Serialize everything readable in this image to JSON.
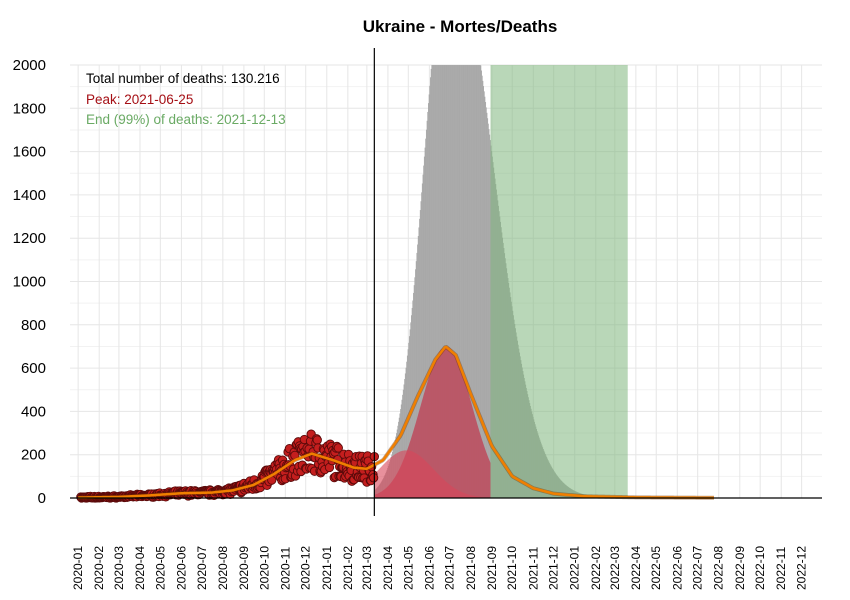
{
  "chart_data": {
    "type": "area",
    "title": "Ukraine - Mortes/Deaths",
    "xlabel": "",
    "ylabel": "",
    "ylim": [
      0,
      2000
    ],
    "xlim": [
      "2019-12-20",
      "2022-12-31"
    ],
    "y_ticks": [
      0,
      200,
      400,
      600,
      800,
      1000,
      1200,
      1400,
      1600,
      1800,
      2000
    ],
    "x_ticks": [
      "2020-01",
      "2020-02",
      "2020-03",
      "2020-04",
      "2020-05",
      "2020-06",
      "2020-07",
      "2020-08",
      "2020-09",
      "2020-10",
      "2020-11",
      "2020-12",
      "2021-01",
      "2021-02",
      "2021-03",
      "2021-04",
      "2021-05",
      "2021-06",
      "2021-07",
      "2021-08",
      "2021-09",
      "2021-10",
      "2021-11",
      "2021-12",
      "2022-01",
      "2022-02",
      "2022-03",
      "2022-04",
      "2022-05",
      "2022-06",
      "2022-07",
      "2022-08",
      "2022-09",
      "2022-10",
      "2022-11",
      "2022-12"
    ],
    "grid": true,
    "annotations": [
      {
        "text": "Total number of deaths: 130.216",
        "color": "#000000"
      },
      {
        "text": "Peak: 2021-06-25",
        "color": "#a50f15"
      },
      {
        "text": "End (99%) of deaths: 2021-12-13",
        "color": "#6aaa64"
      }
    ],
    "vline_date": "2021-03-12",
    "green_span": [
      "2021-08-30",
      "2022-03-20"
    ],
    "colors": {
      "gray_area": "#a9a9a9",
      "green_area": "#7fb77e",
      "red_area": "#c0394d",
      "red_low_area": "#d9465a",
      "orange_line": "#f07f00",
      "points_fill": "#c41e1e",
      "points_stroke": "#5a0a0a"
    },
    "series": [
      {
        "kind": "gray-bars",
        "start": "2021-03-12",
        "peak_date": "2021-07-01",
        "peak_value": 2600,
        "rise_sigma_days": 38,
        "decay_sigma_days": 62,
        "end": "2022-07-31"
      },
      {
        "kind": "red-upper-band",
        "start": "2021-03-12",
        "end": "2021-08-30",
        "peak_date": "2021-06-26",
        "peak_value": 700,
        "sigma_days": 38
      },
      {
        "kind": "red-lower-band",
        "start": "2021-03-12",
        "end": "2021-08-30",
        "peak_date": "2021-04-28",
        "peak_value": 220,
        "sigma_days": 40
      },
      {
        "kind": "orange-fit-line",
        "points": [
          [
            "2020-01-01",
            2
          ],
          [
            "2020-03-01",
            5
          ],
          [
            "2020-04-15",
            12
          ],
          [
            "2020-06-01",
            22
          ],
          [
            "2020-07-15",
            25
          ],
          [
            "2020-08-15",
            35
          ],
          [
            "2020-09-15",
            60
          ],
          [
            "2020-10-15",
            110
          ],
          [
            "2020-11-15",
            175
          ],
          [
            "2020-12-10",
            205
          ],
          [
            "2021-01-10",
            175
          ],
          [
            "2021-02-10",
            140
          ],
          [
            "2021-03-01",
            135
          ],
          [
            "2021-03-25",
            175
          ],
          [
            "2021-04-20",
            290
          ],
          [
            "2021-05-15",
            470
          ],
          [
            "2021-06-10",
            640
          ],
          [
            "2021-06-25",
            700
          ],
          [
            "2021-07-10",
            660
          ],
          [
            "2021-08-01",
            480
          ],
          [
            "2021-09-01",
            240
          ],
          [
            "2021-10-01",
            100
          ],
          [
            "2021-11-01",
            45
          ],
          [
            "2021-12-01",
            20
          ],
          [
            "2022-01-15",
            8
          ],
          [
            "2022-04-01",
            3
          ],
          [
            "2022-07-25",
            1
          ]
        ]
      },
      {
        "kind": "observed-points",
        "start": "2020-01-05",
        "end": "2021-03-12"
      }
    ]
  }
}
